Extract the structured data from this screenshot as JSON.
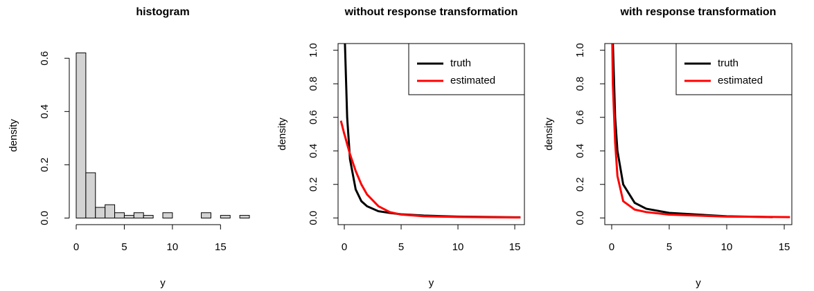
{
  "chart_data": [
    {
      "type": "histogram",
      "title": "histogram",
      "x_label": "y",
      "y_label": "density",
      "bins": [
        0,
        1,
        2,
        3,
        4,
        5,
        6,
        7,
        8,
        9,
        10,
        11,
        12,
        13,
        14,
        15,
        16,
        17,
        18
      ],
      "values": [
        0.62,
        0.17,
        0.04,
        0.05,
        0.02,
        0.01,
        0.02,
        0.01,
        0,
        0.02,
        0,
        0,
        0,
        0.02,
        0,
        0.01,
        0,
        0.01
      ],
      "color": "#d3d3d3",
      "xlim": [
        -0.72,
        18.72
      ],
      "ylim": [
        -0.0248,
        0.6448
      ],
      "xticks": [
        0,
        5,
        10,
        15
      ],
      "yticks": [
        {
          "value": 0,
          "label": "0.0"
        },
        0.2,
        0.4,
        0.6
      ]
    },
    {
      "type": "line",
      "title": "without response transformation",
      "x_label": "y",
      "y_label": "density",
      "x": [
        -0.3,
        0,
        0.05,
        0.25,
        0.5,
        1,
        1.5,
        2,
        3,
        4,
        5,
        7,
        10,
        15,
        15.5
      ],
      "series": [
        {
          "name": "truth",
          "color": "#000000",
          "values": [
            null,
            null,
            1.05,
            0.6,
            0.35,
            0.17,
            0.1,
            0.07,
            0.04,
            0.03,
            0.022,
            0.014,
            0.008,
            0.004,
            0.004
          ]
        },
        {
          "name": "estimated",
          "color": "#ff0000",
          "values": [
            0.58,
            0.5,
            0.49,
            0.44,
            0.38,
            0.28,
            0.2,
            0.14,
            0.07,
            0.035,
            0.02,
            0.01,
            0.006,
            0.003,
            0.003
          ]
        }
      ],
      "xlim": [
        -0.55,
        15.85
      ],
      "ylim": [
        -0.04,
        1.04
      ],
      "xticks": [
        0,
        5,
        10,
        15
      ],
      "yticks": [
        {
          "value": 0,
          "label": "0.0"
        },
        0.2,
        0.4,
        0.6,
        0.8,
        {
          "value": 1,
          "label": "1.0"
        }
      ],
      "legend": "topright"
    },
    {
      "type": "line",
      "title": "with response transformation",
      "x_label": "y",
      "y_label": "density",
      "x": [
        0.05,
        0.1,
        0.3,
        0.5,
        1,
        2,
        3,
        5,
        10,
        14,
        15.5
      ],
      "series": [
        {
          "name": "truth",
          "color": "#000000",
          "values": [
            null,
            1.05,
            0.6,
            0.4,
            0.2,
            0.09,
            0.055,
            0.03,
            0.01,
            0.005,
            null
          ]
        },
        {
          "name": "estimated",
          "color": "#ff0000",
          "values": [
            1.05,
            0.8,
            0.45,
            0.25,
            0.1,
            0.05,
            0.035,
            0.02,
            0.008,
            0.006,
            0.005
          ]
        }
      ],
      "xlim": [
        -0.6,
        15.66
      ],
      "ylim": [
        -0.04,
        1.04
      ],
      "xticks": [
        0,
        5,
        10,
        15
      ],
      "yticks": [
        {
          "value": 0,
          "label": "0.0"
        },
        0.2,
        0.4,
        0.6,
        0.8,
        {
          "value": 1,
          "label": "1.0"
        }
      ],
      "legend": "topright"
    }
  ]
}
